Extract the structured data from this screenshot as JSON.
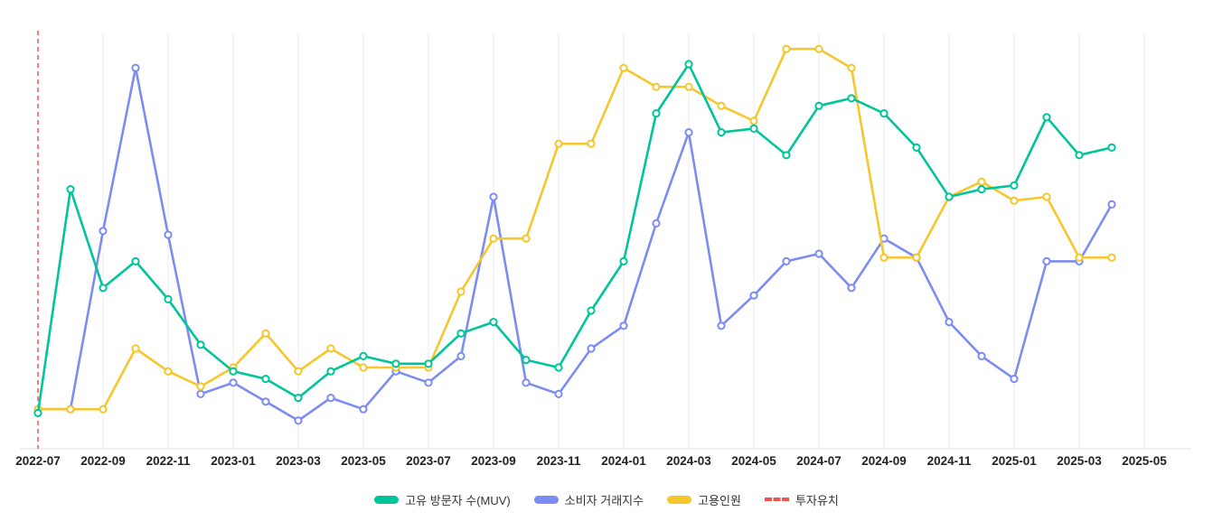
{
  "chart_data": {
    "type": "line",
    "x": [
      "2022-07",
      "2022-08",
      "2022-09",
      "2022-10",
      "2022-11",
      "2022-12",
      "2023-01",
      "2023-02",
      "2023-03",
      "2023-04",
      "2023-05",
      "2023-06",
      "2023-07",
      "2023-08",
      "2023-09",
      "2023-10",
      "2023-11",
      "2023-12",
      "2024-01",
      "2024-02",
      "2024-03",
      "2024-04",
      "2024-05",
      "2024-06",
      "2024-07",
      "2024-08",
      "2024-09",
      "2024-10",
      "2024-11",
      "2024-12",
      "2025-01",
      "2025-02",
      "2025-03",
      "2025-04"
    ],
    "x_tick_labels": [
      "2022-07",
      "2022-09",
      "2022-11",
      "2023-01",
      "2023-03",
      "2023-05",
      "2023-07",
      "2023-09",
      "2023-11",
      "2024-01",
      "2024-03",
      "2024-05",
      "2024-07",
      "2024-09",
      "2024-11",
      "2025-01",
      "2025-03",
      "2025-05"
    ],
    "series": [
      {
        "name": "고유 방문자 수(MUV)",
        "color": "#00c49a",
        "values": [
          3,
          62,
          36,
          43,
          33,
          21,
          14,
          12,
          7,
          14,
          18,
          16,
          16,
          24,
          27,
          17,
          15,
          30,
          43,
          82,
          95,
          77,
          78,
          71,
          84,
          86,
          82,
          73,
          60,
          62,
          63,
          81,
          71,
          73
        ]
      },
      {
        "name": "소비자 거래지수",
        "color": "#7c8cf2",
        "values": [
          4,
          4,
          51,
          94,
          50,
          8,
          11,
          6,
          1,
          7,
          4,
          14,
          11,
          18,
          60,
          11,
          8,
          20,
          26,
          53,
          77,
          26,
          34,
          43,
          45,
          36,
          49,
          44,
          27,
          18,
          12,
          43,
          43,
          58
        ]
      },
      {
        "name": "고용인원",
        "color": "#f6c62d",
        "values": [
          4,
          4,
          4,
          20,
          14,
          10,
          15,
          24,
          14,
          20,
          15,
          15,
          15,
          35,
          49,
          49,
          74,
          74,
          94,
          89,
          89,
          84,
          80,
          99,
          99,
          94,
          44,
          44,
          60,
          64,
          59,
          60,
          44,
          44
        ]
      }
    ],
    "annotations": [
      {
        "type": "vline",
        "x": "2022-07",
        "label": "투자유치",
        "color": "#ef5350",
        "style": "dashed"
      }
    ],
    "ylim": [
      0,
      100
    ],
    "grid": "vertical-only",
    "grid_color": "#ededf3",
    "axis_line_color": "#dfdfe8",
    "legend_position": "bottom",
    "marker": "hollow-circle"
  }
}
